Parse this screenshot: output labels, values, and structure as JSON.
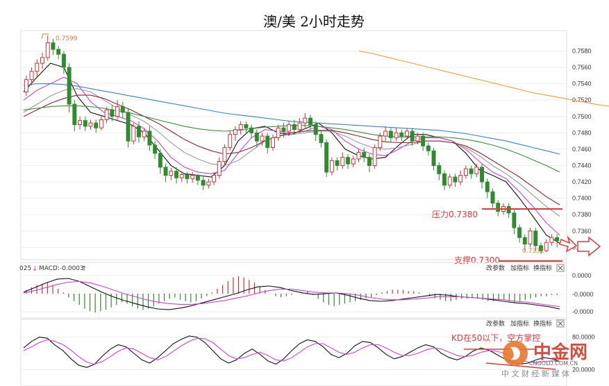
{
  "chart_data": {
    "type": "candlestick",
    "title": "澳/美 2小时走势",
    "y_axis": {
      "ticks": [
        "0.7580",
        "0.7560",
        "0.7540",
        "0.7520",
        "0.7500",
        "0.7480",
        "0.7460",
        "0.7440",
        "0.7420",
        "0.7400",
        "0.7380",
        "0.7360",
        "0.7340"
      ],
      "ylim": [
        0.7325,
        0.7605
      ]
    },
    "candles": [
      [
        0.753,
        0.7545,
        0.7525,
        0.755
      ],
      [
        0.7545,
        0.7555,
        0.7538,
        0.756
      ],
      [
        0.7555,
        0.7565,
        0.7548,
        0.757
      ],
      [
        0.7565,
        0.7572,
        0.7558,
        0.7578
      ],
      [
        0.7572,
        0.759,
        0.7568,
        0.7599
      ],
      [
        0.759,
        0.7582,
        0.7575,
        0.7595
      ],
      [
        0.7582,
        0.7576,
        0.757,
        0.7586
      ],
      [
        0.7576,
        0.756,
        0.7552,
        0.758
      ],
      [
        0.756,
        0.7515,
        0.7505,
        0.7565
      ],
      [
        0.7515,
        0.749,
        0.7482,
        0.752
      ],
      [
        0.749,
        0.7495,
        0.7484,
        0.75
      ],
      [
        0.7495,
        0.7488,
        0.7482,
        0.75
      ],
      [
        0.7488,
        0.7492,
        0.7484,
        0.7496
      ],
      [
        0.7492,
        0.7486,
        0.748,
        0.7496
      ],
      [
        0.7486,
        0.7496,
        0.7483,
        0.75
      ],
      [
        0.7496,
        0.7508,
        0.7492,
        0.7512
      ],
      [
        0.7508,
        0.75,
        0.7494,
        0.7514
      ],
      [
        0.75,
        0.7512,
        0.7496,
        0.752
      ],
      [
        0.7512,
        0.7505,
        0.7498,
        0.7518
      ],
      [
        0.7505,
        0.747,
        0.7462,
        0.751
      ],
      [
        0.747,
        0.7488,
        0.7466,
        0.7492
      ],
      [
        0.7488,
        0.7475,
        0.7468,
        0.7494
      ],
      [
        0.7475,
        0.7482,
        0.747,
        0.7486
      ],
      [
        0.7482,
        0.7465,
        0.7458,
        0.7488
      ],
      [
        0.7465,
        0.7455,
        0.7448,
        0.747
      ],
      [
        0.7455,
        0.7438,
        0.743,
        0.746
      ],
      [
        0.7438,
        0.7428,
        0.742,
        0.7442
      ],
      [
        0.7428,
        0.7433,
        0.7422,
        0.7437
      ],
      [
        0.7433,
        0.7425,
        0.7418,
        0.7438
      ],
      [
        0.7425,
        0.7429,
        0.742,
        0.7433
      ],
      [
        0.7429,
        0.7424,
        0.7418,
        0.7432
      ],
      [
        0.7424,
        0.7428,
        0.7419,
        0.7432
      ],
      [
        0.7428,
        0.7422,
        0.7416,
        0.743
      ],
      [
        0.7422,
        0.7416,
        0.741,
        0.7426
      ],
      [
        0.7416,
        0.742,
        0.7412,
        0.7424
      ],
      [
        0.742,
        0.7428,
        0.7416,
        0.7432
      ],
      [
        0.7428,
        0.7445,
        0.7424,
        0.745
      ],
      [
        0.7445,
        0.7462,
        0.744,
        0.7466
      ],
      [
        0.7462,
        0.7478,
        0.7458,
        0.7482
      ],
      [
        0.7478,
        0.7484,
        0.747,
        0.7488
      ],
      [
        0.7484,
        0.749,
        0.7478,
        0.7494
      ],
      [
        0.749,
        0.7486,
        0.748,
        0.7494
      ],
      [
        0.7486,
        0.748,
        0.7474,
        0.749
      ],
      [
        0.748,
        0.747,
        0.7462,
        0.7484
      ],
      [
        0.747,
        0.7476,
        0.7464,
        0.748
      ],
      [
        0.7476,
        0.7462,
        0.7455,
        0.748
      ],
      [
        0.7462,
        0.7474,
        0.7458,
        0.7478
      ],
      [
        0.7474,
        0.7486,
        0.747,
        0.749
      ],
      [
        0.7486,
        0.7482,
        0.7474,
        0.7492
      ],
      [
        0.7482,
        0.749,
        0.7476,
        0.7494
      ],
      [
        0.749,
        0.7484,
        0.7478,
        0.7496
      ],
      [
        0.7484,
        0.7492,
        0.748,
        0.7498
      ],
      [
        0.7492,
        0.7498,
        0.7486,
        0.7504
      ],
      [
        0.7498,
        0.749,
        0.7484,
        0.7502
      ],
      [
        0.749,
        0.7478,
        0.747,
        0.7494
      ],
      [
        0.7478,
        0.7468,
        0.7462,
        0.7482
      ],
      [
        0.7468,
        0.7432,
        0.7426,
        0.7472
      ],
      [
        0.7432,
        0.7446,
        0.7428,
        0.745
      ],
      [
        0.7446,
        0.744,
        0.7434,
        0.745
      ],
      [
        0.744,
        0.745,
        0.7436,
        0.7456
      ],
      [
        0.745,
        0.7442,
        0.7436,
        0.7454
      ],
      [
        0.7442,
        0.7448,
        0.7438,
        0.7452
      ],
      [
        0.7448,
        0.7456,
        0.7444,
        0.746
      ],
      [
        0.7456,
        0.745,
        0.7444,
        0.7462
      ],
      [
        0.745,
        0.744,
        0.7432,
        0.7454
      ],
      [
        0.744,
        0.7462,
        0.7436,
        0.7466
      ],
      [
        0.7462,
        0.7476,
        0.7458,
        0.748
      ],
      [
        0.7476,
        0.7482,
        0.747,
        0.7488
      ],
      [
        0.7482,
        0.7474,
        0.7468,
        0.7486
      ],
      [
        0.7474,
        0.748,
        0.747,
        0.7486
      ],
      [
        0.748,
        0.7476,
        0.747,
        0.7484
      ],
      [
        0.7476,
        0.7482,
        0.7472,
        0.7486
      ],
      [
        0.7482,
        0.747,
        0.7464,
        0.7486
      ],
      [
        0.747,
        0.7476,
        0.7466,
        0.748
      ],
      [
        0.7476,
        0.7464,
        0.7458,
        0.748
      ],
      [
        0.7464,
        0.7458,
        0.7452,
        0.7468
      ],
      [
        0.7458,
        0.744,
        0.7434,
        0.7462
      ],
      [
        0.744,
        0.743,
        0.7422,
        0.7444
      ],
      [
        0.743,
        0.7416,
        0.741,
        0.7434
      ],
      [
        0.7416,
        0.7426,
        0.7412,
        0.743
      ],
      [
        0.7426,
        0.742,
        0.7414,
        0.743
      ],
      [
        0.742,
        0.7428,
        0.7416,
        0.7434
      ],
      [
        0.7428,
        0.7436,
        0.7424,
        0.744
      ],
      [
        0.7436,
        0.743,
        0.7424,
        0.744
      ],
      [
        0.743,
        0.7438,
        0.7426,
        0.7442
      ],
      [
        0.7438,
        0.742,
        0.7412,
        0.7442
      ],
      [
        0.742,
        0.7408,
        0.74,
        0.7424
      ],
      [
        0.7408,
        0.7394,
        0.7388,
        0.7412
      ],
      [
        0.7394,
        0.7384,
        0.7378,
        0.7398
      ],
      [
        0.7384,
        0.739,
        0.738,
        0.7394
      ],
      [
        0.739,
        0.7382,
        0.7376,
        0.7394
      ],
      [
        0.7382,
        0.7364,
        0.7356,
        0.7386
      ],
      [
        0.7364,
        0.7352,
        0.7346,
        0.7368
      ],
      [
        0.7352,
        0.7344,
        0.7336,
        0.7356
      ],
      [
        0.7344,
        0.736,
        0.734,
        0.7364
      ],
      [
        0.736,
        0.7342,
        0.7336,
        0.7364
      ],
      [
        0.7342,
        0.7336,
        0.7332,
        0.7346
      ],
      [
        0.7336,
        0.7346,
        0.7334,
        0.735
      ],
      [
        0.7346,
        0.7352,
        0.7342,
        0.7356
      ],
      [
        0.7352,
        0.7348,
        0.734,
        0.7356
      ]
    ],
    "moving_averages": [
      {
        "color": "#111111",
        "values": [
          0.753,
          0.7548,
          0.7565,
          0.756,
          0.7525,
          0.7505,
          0.75,
          0.7495,
          0.749,
          0.748,
          0.746,
          0.744,
          0.743,
          0.7428,
          0.7426,
          0.744,
          0.747,
          0.7485,
          0.7488,
          0.748,
          0.7478,
          0.7485,
          0.7492,
          0.748,
          0.746,
          0.7452,
          0.7448,
          0.745,
          0.7465,
          0.7478,
          0.7478,
          0.7474,
          0.747,
          0.7455,
          0.7435,
          0.7428,
          0.742,
          0.74,
          0.7378,
          0.7355,
          0.7345
        ]
      },
      {
        "color": "#cc44cc",
        "values": [
          0.752,
          0.7532,
          0.754,
          0.7548,
          0.754,
          0.7518,
          0.7505,
          0.75,
          0.7495,
          0.7485,
          0.747,
          0.745,
          0.7438,
          0.7432,
          0.743,
          0.7434,
          0.7455,
          0.7474,
          0.7484,
          0.7482,
          0.748,
          0.7482,
          0.7488,
          0.7484,
          0.747,
          0.746,
          0.7454,
          0.7452,
          0.746,
          0.747,
          0.7474,
          0.7474,
          0.747,
          0.746,
          0.7445,
          0.7432,
          0.7424,
          0.7408,
          0.739,
          0.737,
          0.7355
        ]
      },
      {
        "color": "#999999",
        "values": [
          0.7505,
          0.7515,
          0.7525,
          0.7532,
          0.7534,
          0.753,
          0.752,
          0.751,
          0.7502,
          0.7494,
          0.7482,
          0.7468,
          0.7456,
          0.7448,
          0.7442,
          0.744,
          0.7446,
          0.7458,
          0.747,
          0.7476,
          0.7478,
          0.748,
          0.7482,
          0.7482,
          0.7476,
          0.7468,
          0.7462,
          0.746,
          0.7462,
          0.7466,
          0.747,
          0.747,
          0.7468,
          0.7462,
          0.7452,
          0.744,
          0.743,
          0.7418,
          0.7404,
          0.739,
          0.7378
        ]
      },
      {
        "color": "#8b2530",
        "values": [
          0.75,
          0.7508,
          0.7516,
          0.7522,
          0.7526,
          0.7526,
          0.7522,
          0.7515,
          0.7508,
          0.75,
          0.7492,
          0.7482,
          0.7472,
          0.7464,
          0.7458,
          0.7454,
          0.7456,
          0.7462,
          0.747,
          0.7476,
          0.748,
          0.7482,
          0.7483,
          0.7483,
          0.748,
          0.7476,
          0.7472,
          0.7469,
          0.7468,
          0.7468,
          0.747,
          0.747,
          0.7468,
          0.7464,
          0.7456,
          0.7446,
          0.7436,
          0.7426,
          0.7414,
          0.7402,
          0.7392
        ]
      },
      {
        "color": "#3c8c3c",
        "values": [
          0.7508,
          0.751,
          0.7512,
          0.7513,
          0.7513,
          0.7512,
          0.751,
          0.7507,
          0.7504,
          0.75,
          0.7496,
          0.7492,
          0.7488,
          0.7485,
          0.7483,
          0.7482,
          0.7483,
          0.7485,
          0.7487,
          0.7488,
          0.7489,
          0.7489,
          0.7488,
          0.7486,
          0.7484,
          0.7481,
          0.7478,
          0.7476,
          0.7475,
          0.7475,
          0.7475,
          0.7475,
          0.7474,
          0.7472,
          0.7469,
          0.7465,
          0.746,
          0.7454,
          0.7447,
          0.744,
          0.7432
        ]
      },
      {
        "color": "#3a7fd0",
        "values": [
          0.7538,
          0.754,
          0.754,
          0.7539,
          0.7537,
          0.7534,
          0.7531,
          0.7528,
          0.7525,
          0.7522,
          0.7519,
          0.7516,
          0.7513,
          0.751,
          0.7507,
          0.7504,
          0.7502,
          0.75,
          0.7498,
          0.7496,
          0.7494,
          0.7493,
          0.7492,
          0.7491,
          0.749,
          0.7489,
          0.7488,
          0.7487,
          0.7486,
          0.7485,
          0.7484,
          0.7483,
          0.7481,
          0.7479,
          0.7476,
          0.7473,
          0.747,
          0.7466,
          0.7462,
          0.7458,
          0.7454
        ]
      },
      {
        "color": "#f0a030",
        "start_index": 25,
        "values": [
          0.758,
          0.7577,
          0.7573,
          0.7569,
          0.7565,
          0.7561,
          0.7557,
          0.7553,
          0.7549,
          0.7545,
          0.7541,
          0.7537,
          0.7533,
          0.7529,
          0.7526,
          0.7523,
          0.752,
          0.7517,
          0.7514,
          0.7512,
          0.751,
          0.7508,
          0.7506,
          0.7504,
          0.7502,
          0.75,
          0.7499,
          0.7498
        ]
      }
    ],
    "annotations": [
      {
        "text": "0.7599",
        "value": 0.7599
      },
      {
        "text": "0.7332",
        "value": 0.7332
      },
      {
        "text": "压力0.7380",
        "value": 0.738,
        "color": "#e23a3a"
      },
      {
        "text": "支撑0.7300",
        "value": 0.73,
        "color": "#e23a3a"
      },
      {
        "text": "KD在50以下，空方掌控",
        "color": "#e23a3a"
      }
    ],
    "macd": {
      "header_prefix": "025",
      "header_label": "MACD:-0.0003",
      "ticks": [
        "0.0000",
        "-0.0000",
        "-0.0000"
      ],
      "histogram": [
        0.3,
        0.5,
        0.7,
        0.8,
        0.9,
        0.7,
        0.4,
        0.1,
        -0.3,
        -0.6,
        -0.9,
        -1.2,
        -1.4,
        -1.5,
        -1.4,
        -1.3,
        -1.1,
        -0.9,
        -0.7,
        -0.8,
        -1.0,
        -1.2,
        -1.3,
        -1.2,
        -1.0,
        -0.8,
        -0.6,
        -0.4,
        -0.3,
        -0.5,
        -0.6,
        -0.7,
        -0.6,
        -0.4,
        -0.2,
        0.1,
        0.4,
        0.7,
        1.0,
        1.3,
        1.4,
        1.3,
        1.1,
        0.9,
        0.6,
        0.3,
        0.0,
        -0.2,
        -0.3,
        -0.2,
        -0.1,
        0.0,
        0.1,
        0.2,
        -0.1,
        -0.4,
        -0.7,
        -0.9,
        -1.0,
        -0.9,
        -0.8,
        -0.7,
        -0.6,
        -0.5,
        -0.4,
        -0.3,
        -0.1,
        0.1,
        0.2,
        0.3,
        0.3,
        0.3,
        0.2,
        0.2,
        0.1,
        0.0,
        -0.2,
        -0.4,
        -0.5,
        -0.6,
        -0.6,
        -0.5,
        -0.4,
        -0.4,
        -0.3,
        -0.4,
        -0.5,
        -0.6,
        -0.6,
        -0.5,
        -0.5,
        -0.6,
        -0.7,
        -0.6,
        -0.5,
        -0.4,
        -0.3,
        -0.2,
        -0.2,
        -0.1,
        -0.1
      ],
      "dif": [
        0.2,
        0.8,
        1.4,
        1.9,
        2.0,
        1.6,
        0.9,
        0.2,
        -0.4,
        -0.9,
        -1.3,
        -1.7,
        -2.0,
        -2.1,
        -1.9,
        -1.6,
        -1.2,
        -0.8,
        -0.4,
        0.0,
        0.5,
        0.9,
        1.0,
        0.8,
        0.4,
        0.1,
        -0.1,
        0.0,
        0.1,
        -0.2,
        -0.6,
        -0.9,
        -1.0,
        -0.9,
        -0.7,
        -0.5,
        -0.3,
        -0.1,
        -0.2,
        -0.4,
        -0.5,
        -0.6,
        -0.8,
        -1.0,
        -1.2,
        -1.3,
        -1.5,
        -1.7,
        -2.0
      ],
      "dea": [
        0.1,
        0.4,
        0.8,
        1.2,
        1.5,
        1.6,
        1.4,
        1.0,
        0.5,
        0.0,
        -0.4,
        -0.8,
        -1.1,
        -1.3,
        -1.4,
        -1.4,
        -1.3,
        -1.1,
        -0.9,
        -0.6,
        -0.3,
        0.1,
        0.4,
        0.6,
        0.6,
        0.4,
        0.2,
        0.1,
        0.1,
        0.0,
        -0.2,
        -0.5,
        -0.7,
        -0.8,
        -0.8,
        -0.7,
        -0.6,
        -0.4,
        -0.4,
        -0.4,
        -0.5,
        -0.6,
        -0.7,
        -0.8,
        -1.0,
        -1.1,
        -1.3,
        -1.5,
        -1.7
      ]
    },
    "kd": {
      "ticks": [
        "80.0000",
        "20.0000"
      ],
      "k": [
        60,
        72,
        80,
        78,
        65,
        55,
        40,
        28,
        24,
        30,
        45,
        58,
        66,
        62,
        50,
        38,
        32,
        42,
        55,
        68,
        76,
        82,
        80,
        70,
        55,
        40,
        32,
        38,
        50,
        58,
        48,
        36,
        30,
        40,
        55,
        68,
        75,
        72,
        62,
        48,
        42,
        50,
        64,
        72,
        70,
        60,
        48,
        40,
        44,
        52,
        60,
        66,
        62,
        50,
        42,
        38,
        44,
        54,
        60,
        56,
        48,
        40,
        34,
        30,
        32,
        38,
        42,
        40,
        35
      ],
      "d": [
        55,
        62,
        70,
        75,
        72,
        66,
        56,
        44,
        34,
        30,
        35,
        44,
        54,
        60,
        58,
        50,
        42,
        38,
        44,
        54,
        64,
        72,
        78,
        77,
        70,
        58,
        46,
        40,
        42,
        48,
        52,
        46,
        38,
        36,
        42,
        52,
        62,
        68,
        68,
        60,
        52,
        48,
        52,
        60,
        66,
        66,
        60,
        52,
        46,
        46,
        50,
        56,
        60,
        58,
        52,
        46,
        44,
        46,
        52,
        55,
        54,
        50,
        44,
        38,
        34,
        33,
        35,
        36,
        35
      ]
    }
  },
  "toolbar": {
    "params": "改参数",
    "add": "加指标",
    "change": "换指标"
  },
  "watermark": {
    "brand": "中金网",
    "domain": "CNGOLD.COM.CN",
    "tagline": "中 文 财 经 新 媒 体"
  },
  "colors": {
    "up": "#cc3333",
    "down": "#2e8b2e",
    "accent": "#e23a3a",
    "orange": "#e8772e"
  }
}
